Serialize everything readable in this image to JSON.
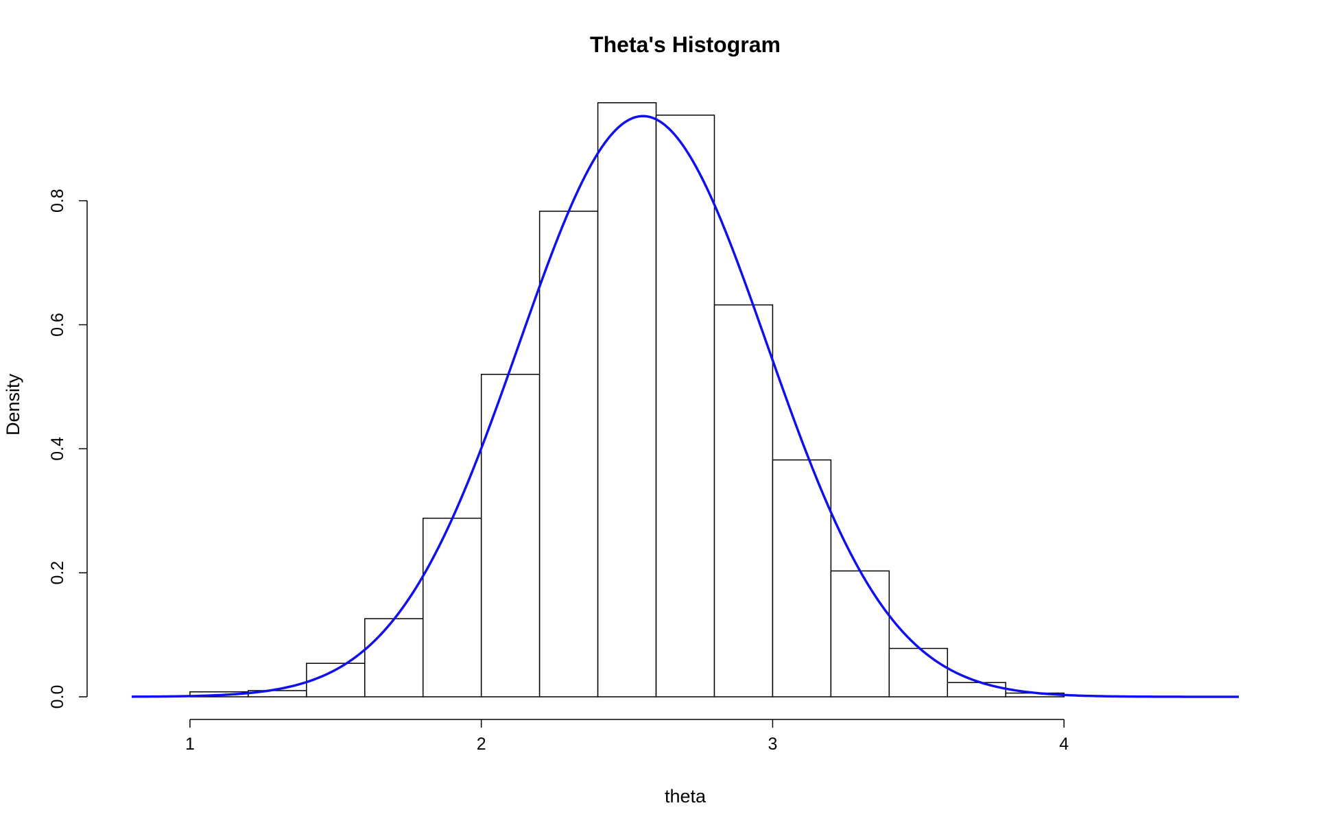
{
  "chart_data": {
    "type": "bar",
    "title": "Theta's Histogram",
    "xlabel": "theta",
    "ylabel": "Density",
    "xlim": [
      0.8,
      4.6
    ],
    "ylim": [
      0,
      0.96
    ],
    "x_ticks": [
      1,
      2,
      3,
      4
    ],
    "y_ticks": [
      0.0,
      0.2,
      0.4,
      0.6,
      0.8
    ],
    "y_tick_labels": [
      "0.0",
      "0.2",
      "0.4",
      "0.6",
      "0.8"
    ],
    "grid": false,
    "bins": [
      {
        "start": 1.0,
        "end": 1.2,
        "density": 0.008
      },
      {
        "start": 1.2,
        "end": 1.4,
        "density": 0.01
      },
      {
        "start": 1.4,
        "end": 1.6,
        "density": 0.054
      },
      {
        "start": 1.6,
        "end": 1.8,
        "density": 0.126
      },
      {
        "start": 1.8,
        "end": 2.0,
        "density": 0.288
      },
      {
        "start": 2.0,
        "end": 2.2,
        "density": 0.52
      },
      {
        "start": 2.2,
        "end": 2.4,
        "density": 0.783
      },
      {
        "start": 2.4,
        "end": 2.6,
        "density": 0.958
      },
      {
        "start": 2.6,
        "end": 2.8,
        "density": 0.938
      },
      {
        "start": 2.8,
        "end": 3.0,
        "density": 0.632
      },
      {
        "start": 3.0,
        "end": 3.2,
        "density": 0.382
      },
      {
        "start": 3.2,
        "end": 3.4,
        "density": 0.203
      },
      {
        "start": 3.4,
        "end": 3.6,
        "density": 0.078
      },
      {
        "start": 3.6,
        "end": 3.8,
        "density": 0.023
      },
      {
        "start": 3.8,
        "end": 4.0,
        "density": 0.006
      }
    ],
    "density_curve": {
      "color": "#1010ee",
      "mean": 2.555,
      "sd": 0.426,
      "x_range": [
        0.8,
        4.6
      ]
    }
  }
}
